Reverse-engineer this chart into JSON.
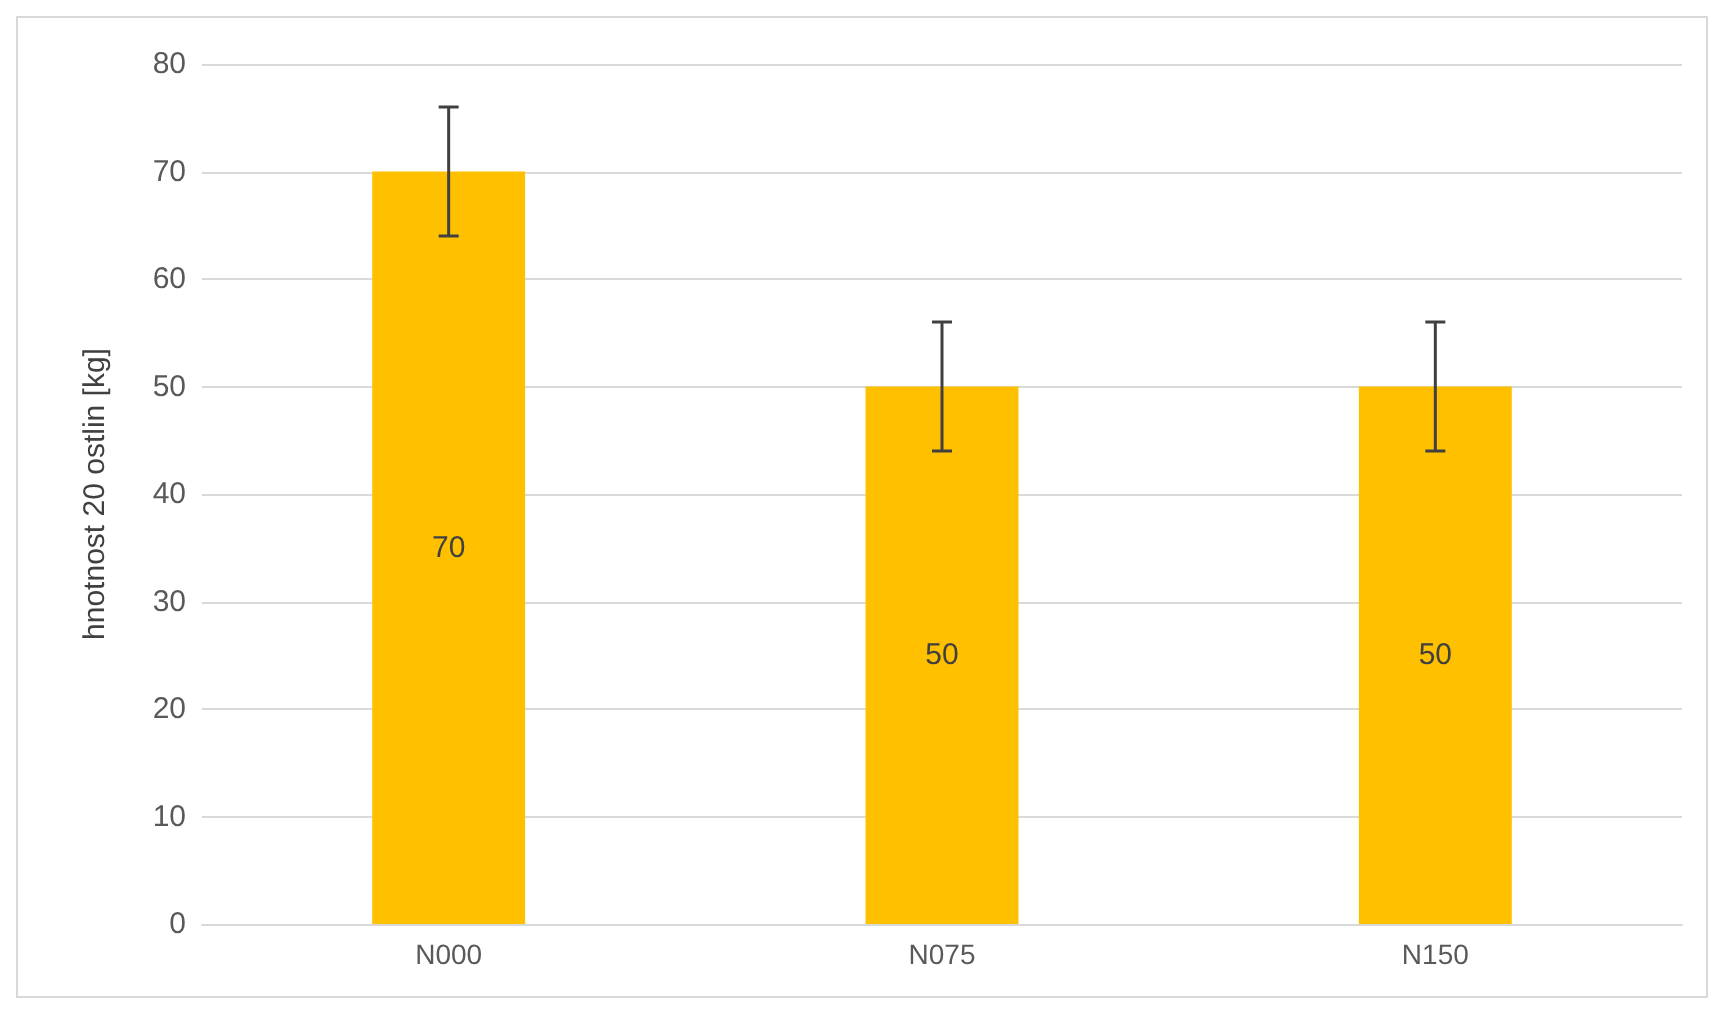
{
  "chart_data": {
    "type": "bar",
    "ylabel": "hnotnost 20 ostlin [kg]",
    "categories": [
      "N000",
      "N075",
      "N150"
    ],
    "values": [
      70,
      50,
      50
    ],
    "errors": [
      6,
      6,
      6
    ],
    "color": "#ffc000",
    "data_labels": true,
    "ylim": [
      0,
      80
    ],
    "yticks": [
      0,
      10,
      20,
      30,
      40,
      50,
      60,
      70,
      80
    ],
    "grid": "y"
  }
}
